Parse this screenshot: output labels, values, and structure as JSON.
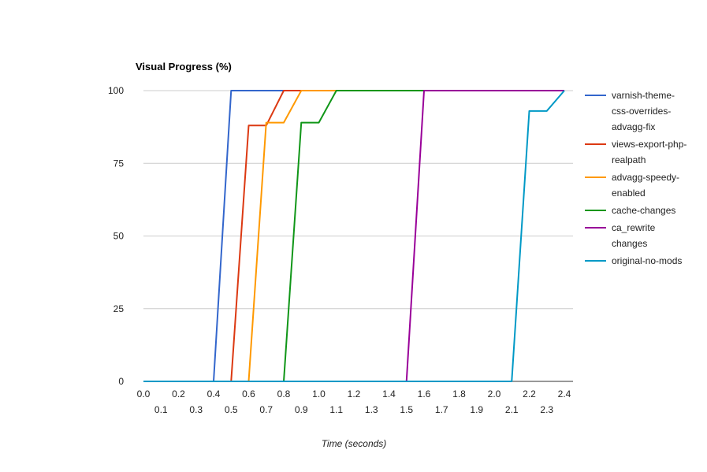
{
  "chart_data": {
    "type": "line",
    "title": "Visual Progress (%)",
    "xlabel": "Time (seconds)",
    "ylabel": "",
    "xlim": [
      0.0,
      2.4
    ],
    "ylim": [
      0,
      100
    ],
    "y_ticks": [
      0,
      25,
      50,
      75,
      100
    ],
    "x_ticks_row1": [
      "0.0",
      "0.2",
      "0.4",
      "0.6",
      "0.8",
      "1.0",
      "1.2",
      "1.4",
      "1.6",
      "1.8",
      "2.0",
      "2.2",
      "2.4"
    ],
    "x_ticks_row2": [
      "0.1",
      "0.3",
      "0.5",
      "0.7",
      "0.9",
      "1.1",
      "1.3",
      "1.5",
      "1.7",
      "1.9",
      "2.1",
      "2.3"
    ],
    "grid": true,
    "legend_position": "right",
    "series": [
      {
        "name": "varnish-theme-css-overrides-advagg-fix",
        "legend_lines": [
          "varnish-theme-",
          "css-overrides-",
          "advagg-fix"
        ],
        "color": "#3366cc",
        "points": [
          [
            0.0,
            0
          ],
          [
            0.4,
            0
          ],
          [
            0.5,
            100
          ],
          [
            2.4,
            100
          ]
        ]
      },
      {
        "name": "views-export-php-realpath",
        "legend_lines": [
          "views-export-php-",
          "realpath"
        ],
        "color": "#dc3912",
        "points": [
          [
            0.0,
            0
          ],
          [
            0.5,
            0
          ],
          [
            0.6,
            88
          ],
          [
            0.7,
            88
          ],
          [
            0.8,
            100
          ],
          [
            2.4,
            100
          ]
        ]
      },
      {
        "name": "advagg-speedy-enabled",
        "legend_lines": [
          "advagg-speedy-",
          "enabled"
        ],
        "color": "#ff9900",
        "points": [
          [
            0.0,
            0
          ],
          [
            0.6,
            0
          ],
          [
            0.7,
            89
          ],
          [
            0.8,
            89
          ],
          [
            0.9,
            100
          ],
          [
            2.4,
            100
          ]
        ]
      },
      {
        "name": "cache-changes",
        "legend_lines": [
          "cache-changes"
        ],
        "color": "#109618",
        "points": [
          [
            0.0,
            0
          ],
          [
            0.8,
            0
          ],
          [
            0.9,
            89
          ],
          [
            1.0,
            89
          ],
          [
            1.1,
            100
          ],
          [
            2.4,
            100
          ]
        ]
      },
      {
        "name": "ca_rewrite changes",
        "legend_lines": [
          "ca_rewrite",
          "changes"
        ],
        "color": "#990099",
        "points": [
          [
            0.0,
            0
          ],
          [
            1.5,
            0
          ],
          [
            1.6,
            100
          ],
          [
            2.4,
            100
          ]
        ]
      },
      {
        "name": "original-no-mods",
        "legend_lines": [
          "original-no-mods"
        ],
        "color": "#0099c6",
        "points": [
          [
            0.0,
            0
          ],
          [
            2.1,
            0
          ],
          [
            2.2,
            93
          ],
          [
            2.3,
            93
          ],
          [
            2.4,
            100
          ]
        ]
      }
    ]
  }
}
